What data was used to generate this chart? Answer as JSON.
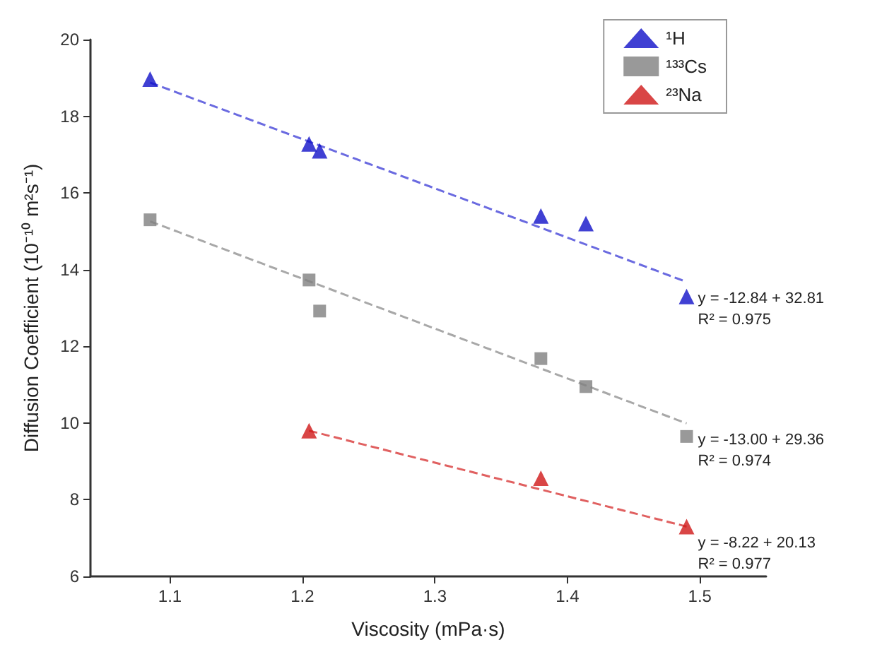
{
  "chart_data": {
    "type": "scatter",
    "xlabel": "Viscosity (mPa·s)",
    "ylabel": "Diffusion Coefficient (10⁻¹⁰ m²s⁻¹)",
    "xlim": [
      1.04,
      1.55
    ],
    "xticks": [
      1.1,
      1.2,
      1.3,
      1.4,
      1.5
    ],
    "ylim": [
      6,
      20
    ],
    "yticks": [
      6,
      8,
      10,
      12,
      14,
      16,
      18,
      20
    ],
    "grid": false,
    "legend": "top right",
    "series": [
      {
        "name": "¹H",
        "color": "#1010c8",
        "marker": "triangle",
        "x": [
          1.085,
          1.205,
          1.213,
          1.38,
          1.414,
          1.49
        ],
        "values": [
          18.97,
          17.28,
          17.1,
          15.4,
          15.2,
          13.3
        ]
      },
      {
        "name": "¹³³Cs",
        "color": "#808080",
        "marker": "square",
        "x": [
          1.085,
          1.205,
          1.213,
          1.38,
          1.414,
          1.49
        ],
        "values": [
          15.3,
          13.73,
          12.92,
          11.68,
          10.95,
          9.65
        ]
      },
      {
        "name": "²³Na",
        "color": "#d01818",
        "marker": "triangle",
        "x": [
          1.205,
          1.38,
          1.49
        ],
        "values": [
          9.8,
          8.56,
          7.3
        ]
      },
      {
        "type": "line",
        "color": "#6a6ae0",
        "line_style": "dashed",
        "marker": "none",
        "x": [
          1.085,
          1.49
        ],
        "values": [
          18.88,
          13.68
        ]
      },
      {
        "type": "line",
        "color": "#a8a8a8",
        "line_style": "dashed",
        "marker": "none",
        "x": [
          1.085,
          1.49
        ],
        "values": [
          15.26,
          9.99
        ]
      },
      {
        "type": "line",
        "color": "#e06060",
        "line_style": "dashed",
        "marker": "none",
        "x": [
          1.205,
          1.49
        ],
        "values": [
          9.8,
          7.3
        ]
      }
    ],
    "annotations": [
      "y = -12.84 + 32.81",
      "R² = 0.975",
      "y = -13.00 + 29.36",
      "R² = 0.974",
      "y = -8.22 + 20.13",
      "R² = 0.977"
    ]
  }
}
